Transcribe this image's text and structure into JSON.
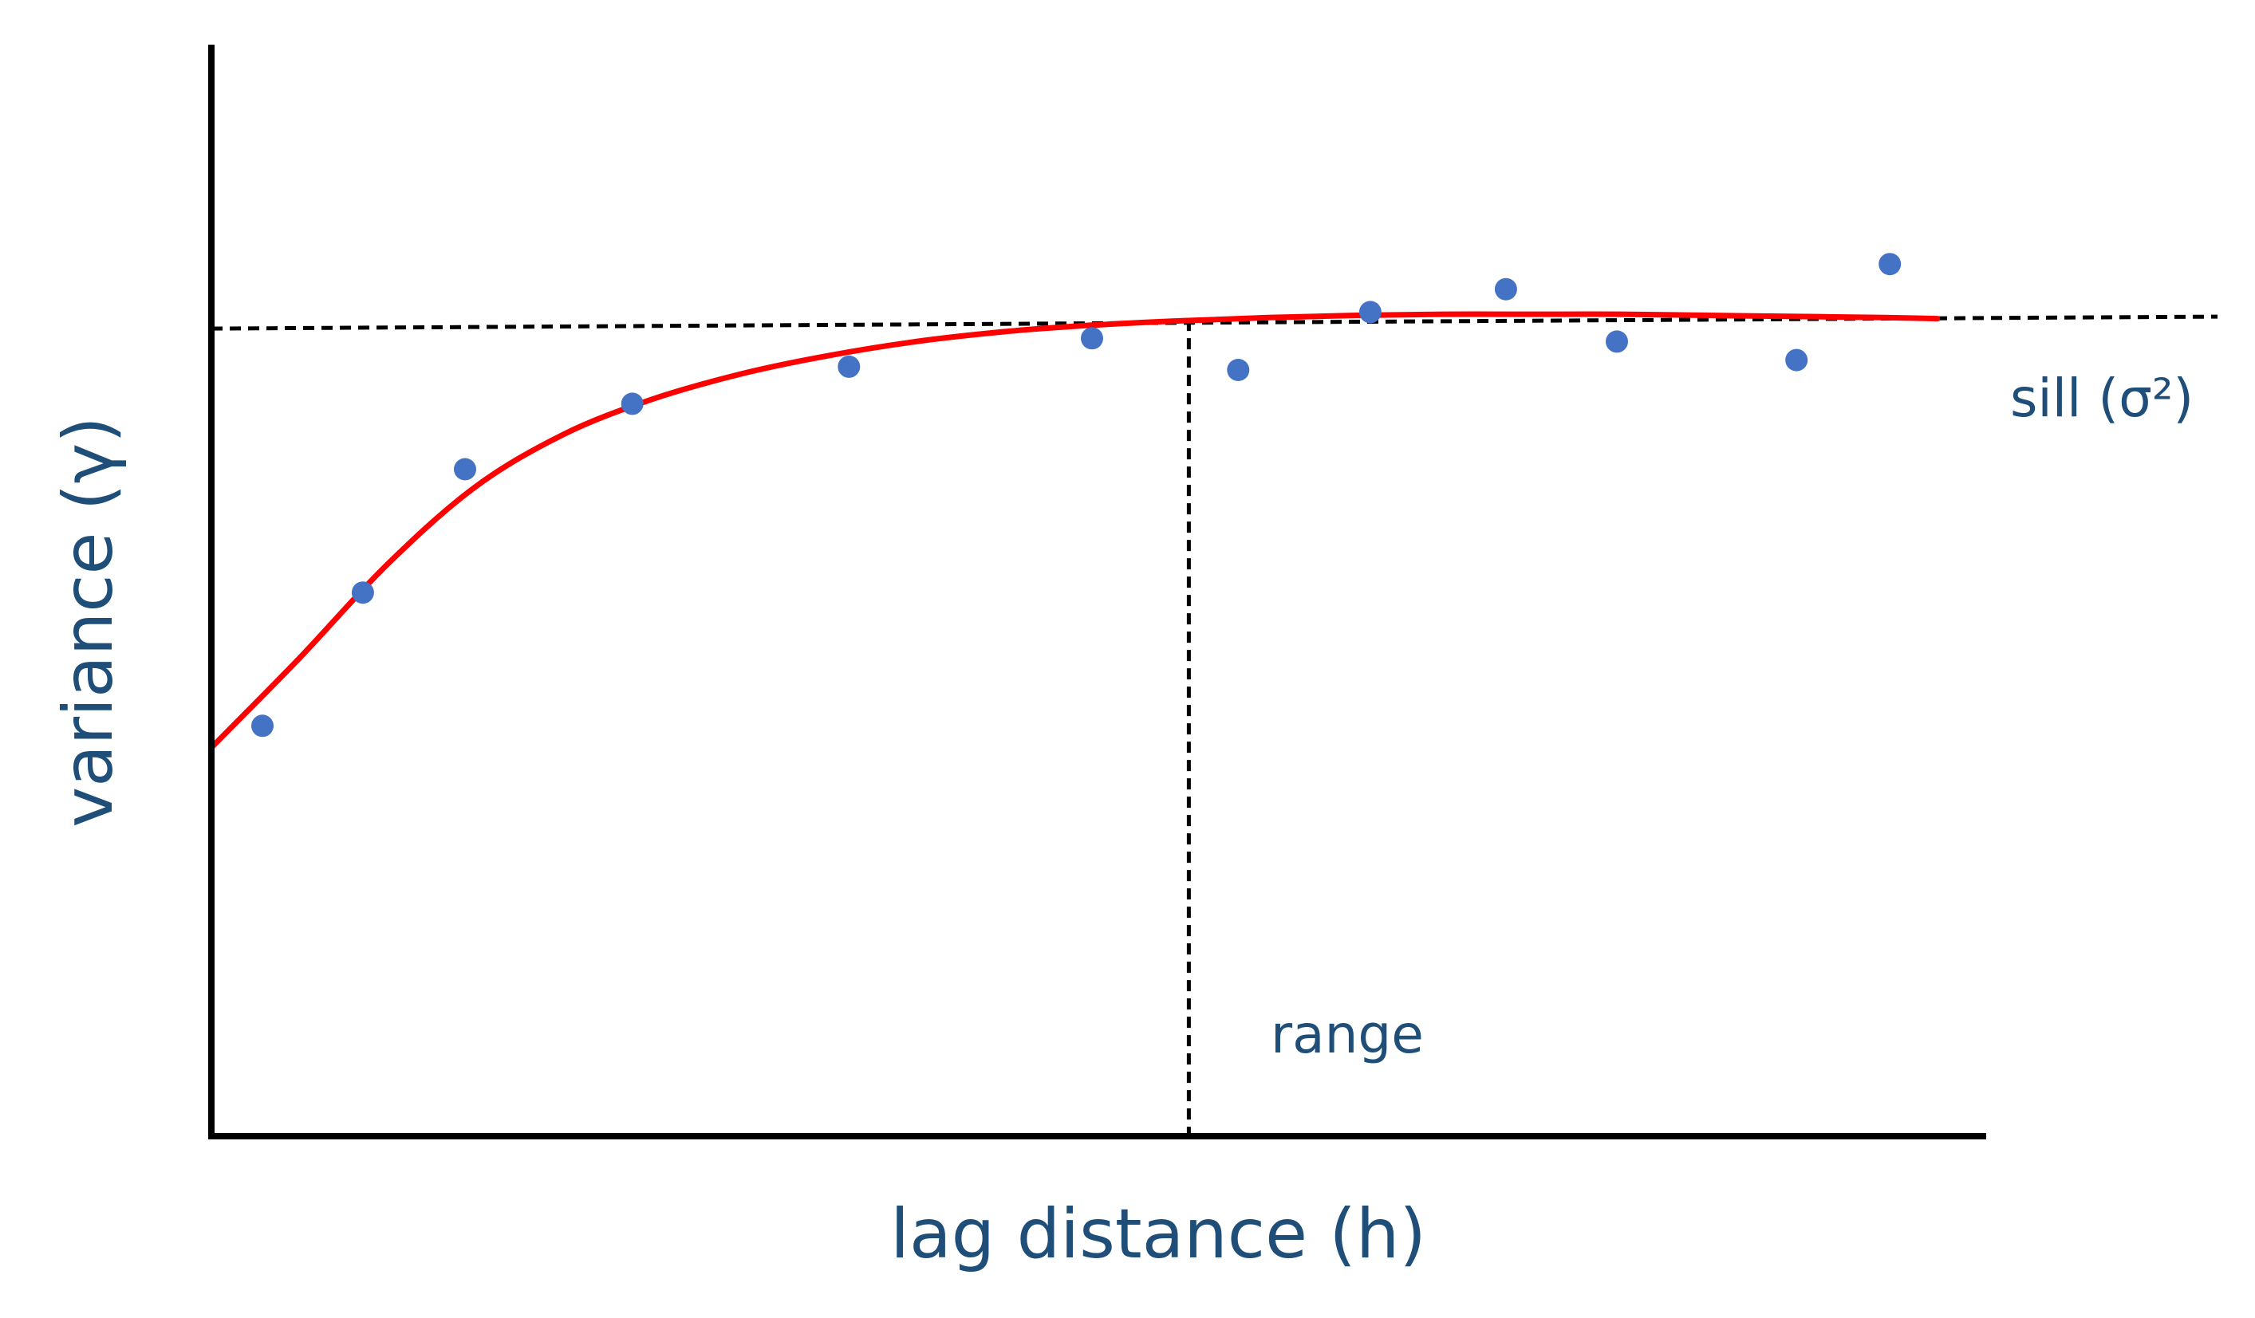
{
  "chart_data": {
    "type": "scatter",
    "title": "",
    "xlabel": "lag distance (h)",
    "ylabel": "variance (γ)",
    "xlim": [
      0,
      100
    ],
    "ylim": [
      0,
      100
    ],
    "grid": false,
    "ticks": false,
    "points": {
      "x": [
        2.9,
        8.6,
        14.4,
        23.9,
        36.2,
        50.0,
        58.3,
        65.8,
        73.5,
        79.8,
        90.0,
        95.3
      ],
      "y": [
        37.6,
        49.8,
        61.1,
        67.1,
        70.5,
        73.1,
        70.2,
        75.5,
        77.6,
        72.8,
        71.1,
        79.9
      ]
    },
    "model": {
      "x": [
        0,
        5,
        10,
        15,
        20,
        25,
        30,
        35,
        40,
        45,
        50,
        55,
        60,
        65,
        70,
        75,
        80,
        85,
        90,
        95,
        98
      ],
      "y": [
        35.6,
        43.8,
        52.4,
        59.5,
        64.3,
        67.5,
        69.8,
        71.5,
        72.8,
        73.7,
        74.3,
        74.7,
        75.0,
        75.2,
        75.3,
        75.3,
        75.3,
        75.2,
        75.1,
        75.0,
        74.9
      ]
    },
    "sill_value": 74.5,
    "range_value": 55.5,
    "annotations": {
      "sill": "sill (σ²)",
      "range": "range"
    },
    "colors": {
      "points": "#4472c4",
      "model": "#ff0000",
      "axes": "#000000",
      "reference": "#000000",
      "text": "#1f4e79"
    }
  }
}
